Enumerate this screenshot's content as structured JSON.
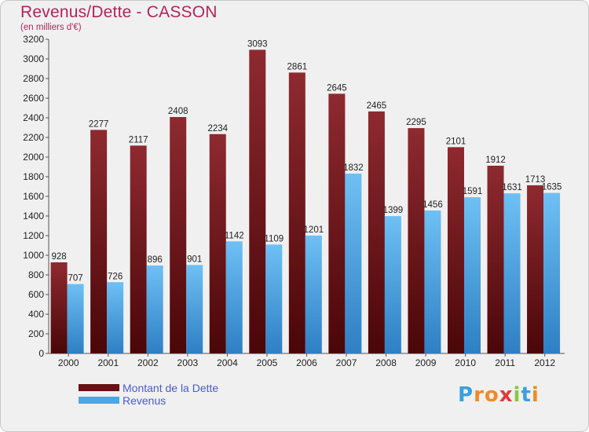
{
  "header": {
    "title": "Revenus/Dette - CASSON",
    "subtitle": "(en milliers d'€)"
  },
  "brand": {
    "letters": [
      "P",
      "r",
      "o",
      "x",
      "i",
      "t",
      "i"
    ],
    "colors": [
      "#3aa0e0",
      "#f08a24",
      "#f08a24",
      "#e03a3a",
      "#8cc63f",
      "#3aa0e0",
      "#f08a24"
    ]
  },
  "chart_data": {
    "type": "bar",
    "title": "Revenus/Dette - CASSON",
    "subtitle": "(en milliers d'€)",
    "categories": [
      "2000",
      "2001",
      "2002",
      "2003",
      "2004",
      "2005",
      "2006",
      "2007",
      "2008",
      "2009",
      "2010",
      "2011",
      "2012"
    ],
    "series": [
      {
        "name": "Montant de la Dette",
        "color": "#7a1c22",
        "values": [
          928,
          2277,
          2117,
          2408,
          2234,
          3093,
          2861,
          2645,
          2465,
          2295,
          2101,
          1912,
          1713
        ]
      },
      {
        "name": "Revenus",
        "color": "#4aa8e8",
        "values": [
          707,
          726,
          896,
          901,
          1142,
          1109,
          1201,
          1832,
          1399,
          1456,
          1591,
          1631,
          1635
        ]
      }
    ],
    "yticks": [
      0,
      200,
      400,
      600,
      800,
      1000,
      1200,
      1400,
      1600,
      1800,
      2000,
      2200,
      2400,
      2600,
      2800,
      3000,
      3200
    ],
    "ylim": [
      0,
      3200
    ],
    "xlabel": "",
    "ylabel": "",
    "grid": false,
    "legend": "bottom-left"
  }
}
